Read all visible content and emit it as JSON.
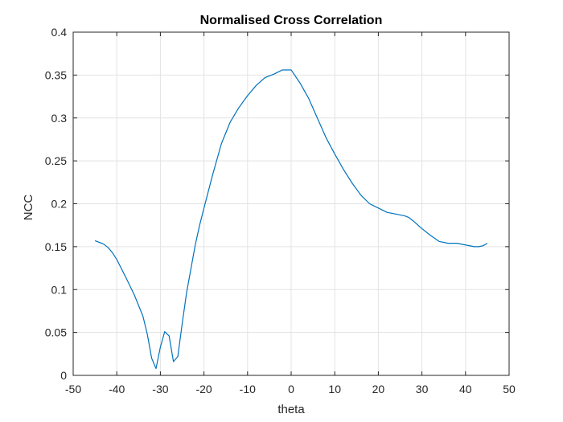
{
  "chart_data": {
    "type": "line",
    "title": "Normalised Cross Correlation",
    "xlabel": "theta",
    "ylabel": "NCC",
    "xlim": [
      -50,
      50
    ],
    "ylim": [
      0,
      0.4
    ],
    "xticks": [
      -50,
      -40,
      -30,
      -20,
      -10,
      0,
      10,
      20,
      30,
      40,
      50
    ],
    "yticks": [
      0,
      0.05,
      0.1,
      0.15,
      0.2,
      0.25,
      0.3,
      0.35,
      0.4
    ],
    "xtick_labels": [
      "-50",
      "-40",
      "-30",
      "-20",
      "-10",
      "0",
      "10",
      "20",
      "30",
      "40",
      "50"
    ],
    "ytick_labels": [
      "0",
      "0.05",
      "0.1",
      "0.15",
      "0.2",
      "0.25",
      "0.3",
      "0.35",
      "0.4"
    ],
    "grid": true,
    "line_color": "#0072BD",
    "series": [
      {
        "x": [
          -45,
          -43,
          -42,
          -41,
          -40,
          -38,
          -36,
          -34,
          -33,
          -32,
          -31,
          -30,
          -29,
          -28,
          -27,
          -26,
          -25,
          -24,
          -23,
          -22,
          -21,
          -20,
          -18,
          -16,
          -14,
          -12,
          -10,
          -8,
          -6,
          -4,
          -2,
          0,
          2,
          4,
          6,
          8,
          10,
          12,
          14,
          16,
          18,
          20,
          22,
          24,
          26,
          27,
          28,
          30,
          32,
          34,
          36,
          38,
          40,
          42,
          43,
          44,
          45
        ],
        "y": [
          0.157,
          0.153,
          0.149,
          0.143,
          0.135,
          0.115,
          0.094,
          0.069,
          0.048,
          0.02,
          0.008,
          0.033,
          0.051,
          0.046,
          0.016,
          0.022,
          0.06,
          0.096,
          0.124,
          0.152,
          0.175,
          0.195,
          0.234,
          0.27,
          0.295,
          0.312,
          0.326,
          0.338,
          0.347,
          0.351,
          0.356,
          0.356,
          0.341,
          0.323,
          0.3,
          0.277,
          0.258,
          0.24,
          0.224,
          0.21,
          0.2,
          0.195,
          0.19,
          0.188,
          0.186,
          0.184,
          0.18,
          0.171,
          0.163,
          0.156,
          0.154,
          0.154,
          0.152,
          0.15,
          0.15,
          0.151,
          0.154
        ]
      }
    ]
  }
}
